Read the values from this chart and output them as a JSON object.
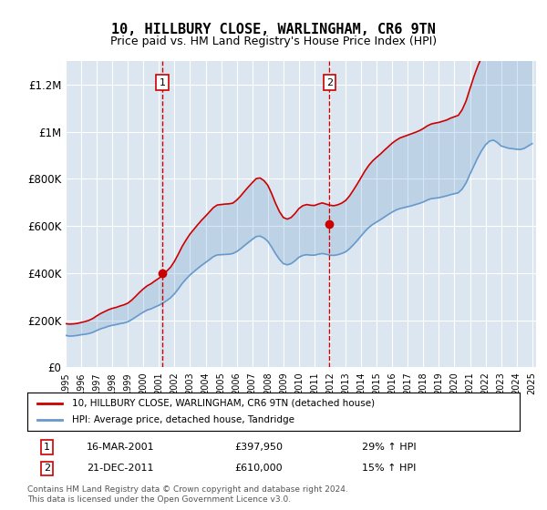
{
  "title": "10, HILLBURY CLOSE, WARLINGHAM, CR6 9TN",
  "subtitle": "Price paid vs. HM Land Registry's House Price Index (HPI)",
  "legend_line1": "10, HILLBURY CLOSE, WARLINGHAM, CR6 9TN (detached house)",
  "legend_line2": "HPI: Average price, detached house, Tandridge",
  "annotation1_label": "1",
  "annotation1_date": "16-MAR-2001",
  "annotation1_price": "£397,950",
  "annotation1_hpi": "29% ↑ HPI",
  "annotation1_year": 2001.21,
  "annotation2_label": "2",
  "annotation2_date": "21-DEC-2011",
  "annotation2_price": "£610,000",
  "annotation2_hpi": "15% ↑ HPI",
  "annotation2_year": 2011.97,
  "annotation1_price_val": 397950,
  "annotation2_price_val": 610000,
  "footer": "Contains HM Land Registry data © Crown copyright and database right 2024.\nThis data is licensed under the Open Government Licence v3.0.",
  "ylim": [
    0,
    1300000
  ],
  "yticks": [
    0,
    200000,
    400000,
    600000,
    800000,
    1000000,
    1200000
  ],
  "ytick_labels": [
    "£0",
    "£200K",
    "£400K",
    "£600K",
    "£800K",
    "£1M",
    "£1.2M"
  ],
  "background_color": "#ffffff",
  "chart_bg_color": "#dce6f0",
  "grid_color": "#ffffff",
  "red_line_color": "#cc0000",
  "blue_line_color": "#6699cc",
  "hpi_data_x": [
    1995.0,
    1995.25,
    1995.5,
    1995.75,
    1996.0,
    1996.25,
    1996.5,
    1996.75,
    1997.0,
    1997.25,
    1997.5,
    1997.75,
    1998.0,
    1998.25,
    1998.5,
    1998.75,
    1999.0,
    1999.25,
    1999.5,
    1999.75,
    2000.0,
    2000.25,
    2000.5,
    2000.75,
    2001.0,
    2001.25,
    2001.5,
    2001.75,
    2002.0,
    2002.25,
    2002.5,
    2002.75,
    2003.0,
    2003.25,
    2003.5,
    2003.75,
    2004.0,
    2004.25,
    2004.5,
    2004.75,
    2005.0,
    2005.25,
    2005.5,
    2005.75,
    2006.0,
    2006.25,
    2006.5,
    2006.75,
    2007.0,
    2007.25,
    2007.5,
    2007.75,
    2008.0,
    2008.25,
    2008.5,
    2008.75,
    2009.0,
    2009.25,
    2009.5,
    2009.75,
    2010.0,
    2010.25,
    2010.5,
    2010.75,
    2011.0,
    2011.25,
    2011.5,
    2011.75,
    2012.0,
    2012.25,
    2012.5,
    2012.75,
    2013.0,
    2013.25,
    2013.5,
    2013.75,
    2014.0,
    2014.25,
    2014.5,
    2014.75,
    2015.0,
    2015.25,
    2015.5,
    2015.75,
    2016.0,
    2016.25,
    2016.5,
    2016.75,
    2017.0,
    2017.25,
    2017.5,
    2017.75,
    2018.0,
    2018.25,
    2018.5,
    2018.75,
    2019.0,
    2019.25,
    2019.5,
    2019.75,
    2020.0,
    2020.25,
    2020.5,
    2020.75,
    2021.0,
    2021.25,
    2021.5,
    2021.75,
    2022.0,
    2022.25,
    2022.5,
    2022.75,
    2023.0,
    2023.25,
    2023.5,
    2023.75,
    2024.0,
    2024.25,
    2024.5,
    2024.75,
    2025.0
  ],
  "hpi_data_y": [
    135000,
    132000,
    133000,
    135000,
    138000,
    140000,
    143000,
    148000,
    156000,
    163000,
    168000,
    174000,
    178000,
    181000,
    185000,
    188000,
    193000,
    202000,
    213000,
    224000,
    234000,
    243000,
    248000,
    256000,
    263000,
    272000,
    283000,
    295000,
    312000,
    333000,
    356000,
    375000,
    392000,
    406000,
    420000,
    433000,
    445000,
    457000,
    470000,
    477000,
    478000,
    479000,
    480000,
    483000,
    491000,
    503000,
    517000,
    530000,
    543000,
    555000,
    557000,
    549000,
    535000,
    510000,
    482000,
    458000,
    440000,
    435000,
    440000,
    452000,
    467000,
    475000,
    478000,
    476000,
    476000,
    480000,
    483000,
    480000,
    476000,
    475000,
    478000,
    483000,
    490000,
    503000,
    520000,
    538000,
    558000,
    577000,
    594000,
    607000,
    617000,
    627000,
    638000,
    649000,
    659000,
    668000,
    674000,
    678000,
    682000,
    686000,
    691000,
    696000,
    702000,
    710000,
    716000,
    718000,
    720000,
    724000,
    728000,
    733000,
    737000,
    741000,
    757000,
    783000,
    820000,
    855000,
    890000,
    920000,
    945000,
    960000,
    965000,
    955000,
    940000,
    935000,
    930000,
    928000,
    926000,
    925000,
    930000,
    940000,
    950000
  ],
  "property_data_x": [
    1995.0,
    1995.25,
    1995.5,
    1995.75,
    1996.0,
    1996.25,
    1996.5,
    1996.75,
    1997.0,
    1997.25,
    1997.5,
    1997.75,
    1998.0,
    1998.25,
    1998.5,
    1998.75,
    1999.0,
    1999.25,
    1999.5,
    1999.75,
    2000.0,
    2000.25,
    2000.5,
    2000.75,
    2001.0,
    2001.25,
    2001.5,
    2001.75,
    2002.0,
    2002.25,
    2002.5,
    2002.75,
    2003.0,
    2003.25,
    2003.5,
    2003.75,
    2004.0,
    2004.25,
    2004.5,
    2004.75,
    2005.0,
    2005.25,
    2005.5,
    2005.75,
    2006.0,
    2006.25,
    2006.5,
    2006.75,
    2007.0,
    2007.25,
    2007.5,
    2007.75,
    2008.0,
    2008.25,
    2008.5,
    2008.75,
    2009.0,
    2009.25,
    2009.5,
    2009.75,
    2010.0,
    2010.25,
    2010.5,
    2010.75,
    2011.0,
    2011.25,
    2011.5,
    2011.75,
    2012.0,
    2012.25,
    2012.5,
    2012.75,
    2013.0,
    2013.25,
    2013.5,
    2013.75,
    2014.0,
    2014.25,
    2014.5,
    2014.75,
    2015.0,
    2015.25,
    2015.5,
    2015.75,
    2016.0,
    2016.25,
    2016.5,
    2016.75,
    2017.0,
    2017.25,
    2017.5,
    2017.75,
    2018.0,
    2018.25,
    2018.5,
    2018.75,
    2019.0,
    2019.25,
    2019.5,
    2019.75,
    2020.0,
    2020.25,
    2020.5,
    2020.75,
    2021.0,
    2021.25,
    2021.5,
    2021.75,
    2022.0,
    2022.25,
    2022.5,
    2022.75,
    2023.0,
    2023.25,
    2023.5,
    2023.75,
    2024.0,
    2024.25,
    2024.5,
    2024.75,
    2025.0
  ],
  "property_data_y": [
    185000,
    183000,
    184000,
    186000,
    190000,
    194000,
    199000,
    207000,
    218000,
    228000,
    236000,
    244000,
    250000,
    254000,
    260000,
    265000,
    272000,
    285000,
    301000,
    318000,
    333000,
    346000,
    355000,
    367000,
    378000,
    391000,
    408000,
    425000,
    450000,
    481000,
    514000,
    541000,
    566000,
    586000,
    606000,
    625000,
    642000,
    660000,
    678000,
    689000,
    691000,
    693000,
    694000,
    697000,
    710000,
    727000,
    747000,
    766000,
    784000,
    801000,
    804000,
    793000,
    773000,
    737000,
    696000,
    661000,
    636000,
    629000,
    636000,
    653000,
    674000,
    686000,
    691000,
    688000,
    687000,
    693000,
    698000,
    693000,
    688000,
    686000,
    690000,
    697000,
    708000,
    727000,
    752000,
    778000,
    806000,
    834000,
    858000,
    877000,
    892000,
    906000,
    922000,
    937000,
    952000,
    964000,
    974000,
    980000,
    986000,
    992000,
    998000,
    1005000,
    1014000,
    1025000,
    1033000,
    1037000,
    1040000,
    1045000,
    1050000,
    1058000,
    1064000,
    1070000,
    1094000,
    1131000,
    1183000,
    1234000,
    1279000,
    1317000,
    1348000,
    1367000,
    1375000,
    1361000,
    1339000,
    1330000,
    1324000,
    1322000,
    1319000,
    1317000,
    1325000,
    1339000,
    1353000
  ],
  "xmin": 1995.0,
  "xmax": 2025.25
}
